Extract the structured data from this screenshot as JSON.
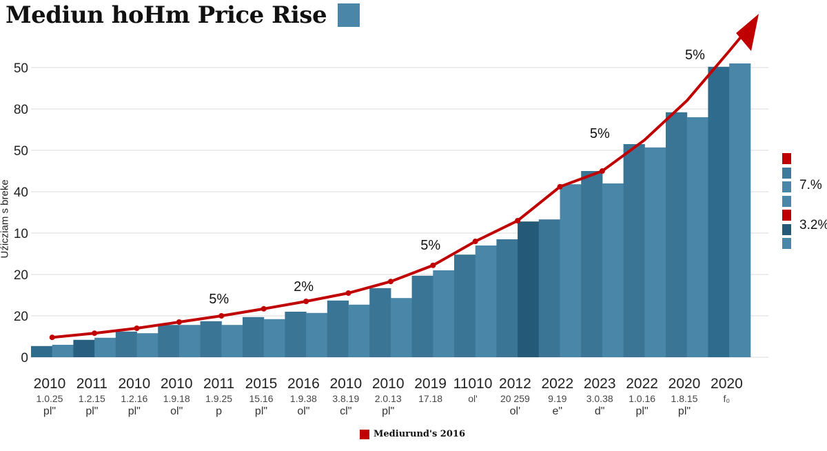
{
  "title": "Mediun hoHm Price Rise",
  "title_square_color": "#4a86a8",
  "chart_data": {
    "type": "bar",
    "title": "Mediun hoHm Price Rise",
    "ylabel": "Uźicziam s breke",
    "ylim": [
      0,
      7.5
    ],
    "grid": true,
    "y_ticks": [
      {
        "value": 0,
        "label": "0"
      },
      {
        "value": 1,
        "label": "20"
      },
      {
        "value": 2,
        "label": "20"
      },
      {
        "value": 3,
        "label": "10"
      },
      {
        "value": 4,
        "label": "40"
      },
      {
        "value": 5,
        "label": "50"
      },
      {
        "value": 6,
        "label": "80"
      },
      {
        "value": 7,
        "label": "50"
      }
    ],
    "bar_values": [
      0.27,
      0.3,
      0.42,
      0.47,
      0.62,
      0.58,
      0.78,
      0.78,
      0.87,
      0.78,
      0.97,
      0.92,
      1.1,
      1.07,
      1.37,
      1.27,
      1.67,
      1.43,
      1.97,
      2.1,
      2.48,
      2.7,
      2.85,
      3.28,
      3.33,
      4.18,
      4.5,
      4.2,
      5.15,
      5.07,
      5.92,
      5.8,
      7.02,
      7.1
    ],
    "bar_colors": [
      "#2f6b8c",
      "#4a86a8",
      "#285f80",
      "#4a86a8",
      "#3a7596",
      "#4a86a8",
      "#3a7596",
      "#4a86a8",
      "#3a7596",
      "#4a86a8",
      "#3a7596",
      "#4a86a8",
      "#3a7596",
      "#4a86a8",
      "#3a7596",
      "#4a86a8",
      "#3a7596",
      "#4a86a8",
      "#3a7596",
      "#4a86a8",
      "#3a7596",
      "#4a86a8",
      "#3a7596",
      "#245a78",
      "#3a7596",
      "#4a86a8",
      "#3a7596",
      "#4a86a8",
      "#3a7596",
      "#4a86a8",
      "#3a7596",
      "#4a86a8",
      "#2f6b8c",
      "#4a86a8"
    ],
    "trend_line": {
      "color": "#c00000",
      "x_index": [
        1,
        3,
        5,
        7,
        9,
        11,
        13,
        15,
        17,
        19,
        21,
        23,
        25,
        27,
        29,
        31,
        33,
        34.3
      ],
      "values": [
        0.48,
        0.58,
        0.7,
        0.85,
        1.0,
        1.17,
        1.35,
        1.55,
        1.83,
        2.22,
        2.8,
        3.3,
        4.12,
        4.5,
        5.25,
        6.2,
        7.4,
        8.2
      ],
      "markers": 14
    },
    "annotations": [
      {
        "text": "5%",
        "x_index": 9
      },
      {
        "text": "2%",
        "x_index": 13
      },
      {
        "text": "5%",
        "x_index": 19
      },
      {
        "text": "5%",
        "x_index": 27
      },
      {
        "text": "5%",
        "x_index": 31.5
      }
    ],
    "annotation_values": [
      1.3,
      1.6,
      2.6,
      5.3,
      7.2
    ],
    "x_labels": [
      {
        "year": "2010",
        "sub": "1.0.25",
        "tag": "pl\""
      },
      {
        "year": "2011",
        "sub": "1.2.15",
        "tag": "pl\""
      },
      {
        "year": "2010",
        "sub": "1.2.16",
        "tag": "pl\""
      },
      {
        "year": "2010",
        "sub": "1.9.18",
        "tag": "ol\""
      },
      {
        "year": "2011",
        "sub": "1.9.25",
        "tag": "p"
      },
      {
        "year": "2015",
        "sub": "15.16",
        "tag": "pl\""
      },
      {
        "year": "2016",
        "sub": "1.9.38",
        "tag": "ol\""
      },
      {
        "year": "2010",
        "sub": "3.8.19",
        "tag": "cl\""
      },
      {
        "year": "2010",
        "sub": "2.0.13",
        "tag": "pl\""
      },
      {
        "year": "2019",
        "sub": "17.18",
        "tag": ""
      },
      {
        "year": "11010",
        "sub": "ol'",
        "tag": ""
      },
      {
        "year": "2012",
        "sub": "20 259",
        "tag": "ol'"
      },
      {
        "year": "2022",
        "sub": "9.19",
        "tag": "e\""
      },
      {
        "year": "2023",
        "sub": "3.0.38",
        "tag": "d\""
      },
      {
        "year": "2022",
        "sub": "1.0.16",
        "tag": "pl\""
      },
      {
        "year": "2020",
        "sub": "1.8.15",
        "tag": "pl\""
      },
      {
        "year": "2020",
        "sub": "f₀",
        "tag": ""
      }
    ],
    "legend": {
      "label": "Mediurund's 2016",
      "color": "#c00000",
      "placement": "bottom"
    },
    "side_legend": {
      "colors": [
        "#c00000",
        "#3d7a9c",
        "#4a86a8",
        "#4a86a8",
        "#c00000",
        "#245a78",
        "#4a86a8"
      ],
      "labels": [
        "7.%",
        "3.2%"
      ]
    }
  }
}
